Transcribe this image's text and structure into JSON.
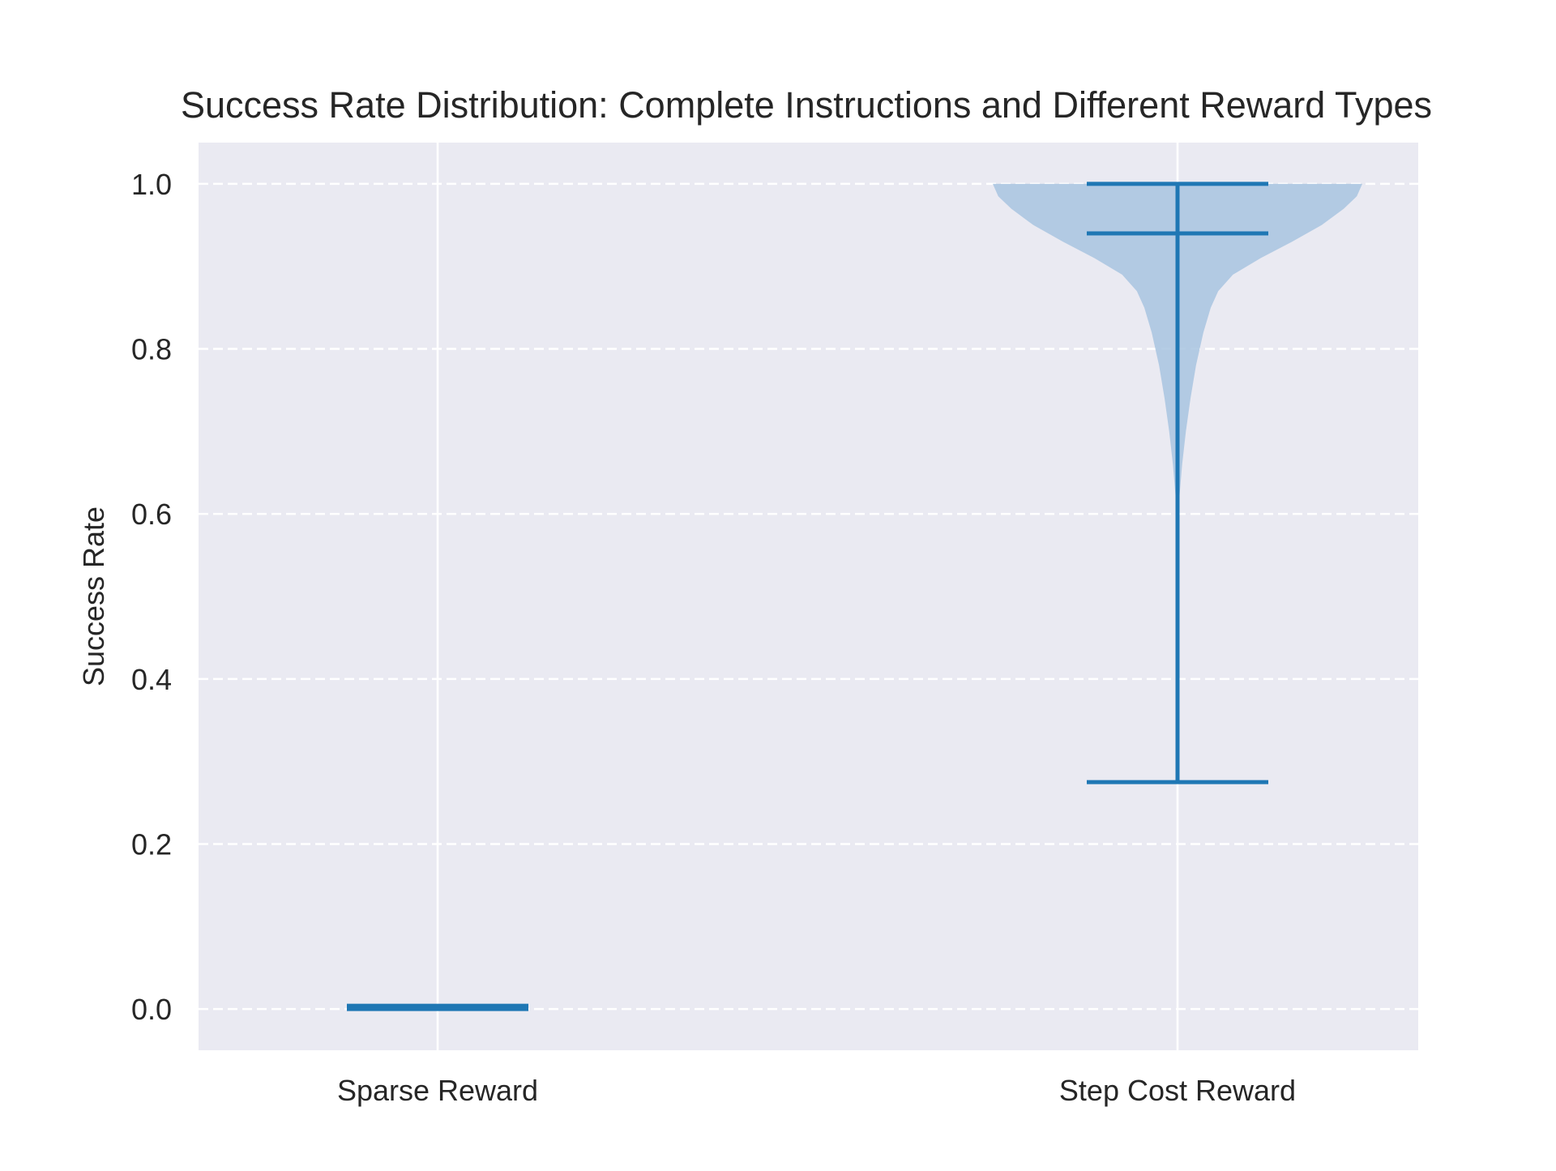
{
  "chart_data": {
    "type": "violin",
    "title": "Success Rate Distribution: Complete Instructions and Different Reward Types",
    "xlabel": "",
    "ylabel": "Success Rate",
    "categories": [
      "Sparse Reward",
      "Step Cost Reward"
    ],
    "ylim": [
      -0.05,
      1.05
    ],
    "yticks": [
      0.0,
      0.2,
      0.4,
      0.6,
      0.8,
      1.0
    ],
    "ytick_labels": [
      "0.0",
      "0.2",
      "0.4",
      "0.6",
      "0.8",
      "1.0"
    ],
    "grid": {
      "y": "dashed",
      "x": "solid"
    },
    "violins": [
      {
        "category": "Sparse Reward",
        "min": 0.0,
        "max": 0.0,
        "median": 0.0,
        "density_profile": []
      },
      {
        "category": "Step Cost Reward",
        "min": 0.275,
        "max": 1.0,
        "median": 0.94,
        "density_profile": [
          {
            "y": 0.58,
            "w": 0.0
          },
          {
            "y": 0.62,
            "w": 0.01
          },
          {
            "y": 0.66,
            "w": 0.025
          },
          {
            "y": 0.7,
            "w": 0.045
          },
          {
            "y": 0.74,
            "w": 0.07
          },
          {
            "y": 0.78,
            "w": 0.1
          },
          {
            "y": 0.82,
            "w": 0.14
          },
          {
            "y": 0.85,
            "w": 0.18
          },
          {
            "y": 0.87,
            "w": 0.22
          },
          {
            "y": 0.89,
            "w": 0.3
          },
          {
            "y": 0.91,
            "w": 0.45
          },
          {
            "y": 0.93,
            "w": 0.62
          },
          {
            "y": 0.95,
            "w": 0.78
          },
          {
            "y": 0.97,
            "w": 0.9
          },
          {
            "y": 0.985,
            "w": 0.97
          },
          {
            "y": 1.0,
            "w": 1.0
          }
        ]
      }
    ],
    "colors": {
      "violin_fill": "#a8c4e0",
      "violin_line": "#1f77b4",
      "plot_background": "#eaeaf2",
      "grid": "#ffffff"
    }
  }
}
